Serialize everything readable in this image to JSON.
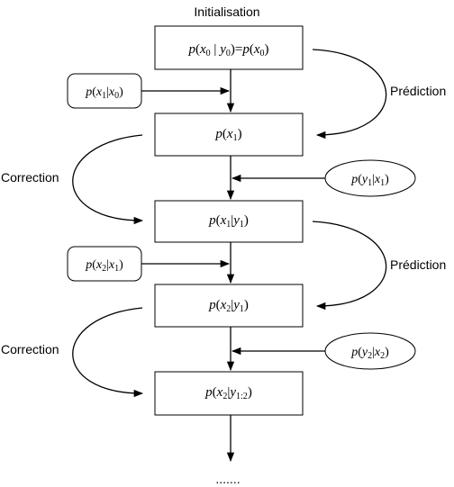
{
  "header": {
    "title": "Initialisation"
  },
  "footer": {
    "continuation": "......."
  },
  "side_labels": {
    "prediction_1": "Prédiction",
    "correction_1": "Correction",
    "prediction_2": "Prédiction",
    "correction_2": "Correction"
  },
  "nodes": {
    "state_0": "p(x0 | y0) = p(x0)",
    "state_1": "p(x1)",
    "state_2": "p(x1|y1)",
    "state_3": "p(x2|y1)",
    "state_4": "p(x2|y1:2)"
  },
  "inputs": {
    "transition_1": "p(x1|x0)",
    "observation_1": "p(y1|x1)",
    "transition_2": "p(x2|x1)",
    "observation_2": "p(y2|x2)"
  }
}
